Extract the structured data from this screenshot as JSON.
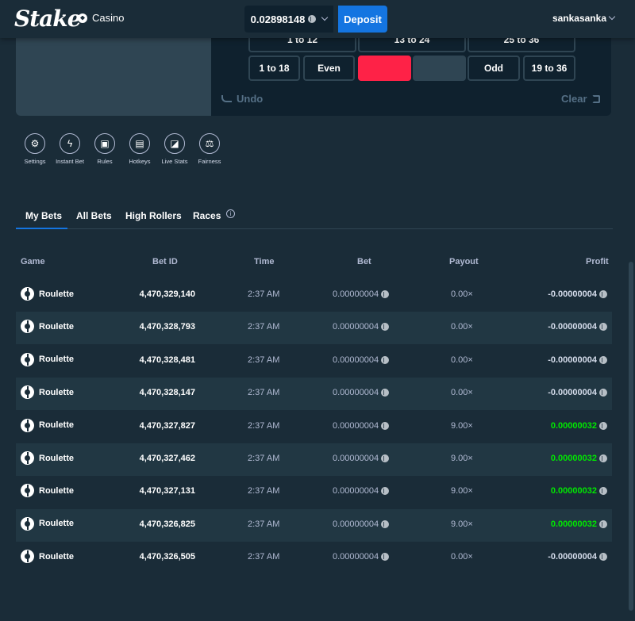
{
  "header": {
    "logo": "Stake",
    "casino_label": "Casino",
    "balance": "0.02898148",
    "deposit_label": "Deposit",
    "username": "sankasanka"
  },
  "bet_board": {
    "row1": [
      "1 to 12",
      "13 to 24",
      "25 to 36"
    ],
    "row2": [
      "1 to 18",
      "Even",
      "",
      "",
      "Odd",
      "19 to 36"
    ],
    "undo_label": "Undo",
    "clear_label": "Clear",
    "colors": {
      "red": "#fe2247",
      "black": "#2f4553"
    }
  },
  "tools": [
    {
      "label": "Settings",
      "icon": "gear-icon"
    },
    {
      "label": "Instant Bet",
      "icon": "lightning-icon"
    },
    {
      "label": "Rules",
      "icon": "rules-icon"
    },
    {
      "label": "Hotkeys",
      "icon": "keyboard-icon"
    },
    {
      "label": "Live Stats",
      "icon": "chart-icon"
    },
    {
      "label": "Fairness",
      "icon": "scale-icon"
    }
  ],
  "tabs": [
    "My Bets",
    "All Bets",
    "High Rollers",
    "Races"
  ],
  "table": {
    "headers": {
      "game": "Game",
      "betid": "Bet ID",
      "time": "Time",
      "bet": "Bet",
      "payout": "Payout",
      "profit": "Profit"
    },
    "rows": [
      {
        "game": "Roulette",
        "betid": "4,470,329,140",
        "time": "2:37 AM",
        "bet": "0.00000004",
        "payout": "0.00×",
        "profit": "-0.00000004",
        "win": false
      },
      {
        "game": "Roulette",
        "betid": "4,470,328,793",
        "time": "2:37 AM",
        "bet": "0.00000004",
        "payout": "0.00×",
        "profit": "-0.00000004",
        "win": false
      },
      {
        "game": "Roulette",
        "betid": "4,470,328,481",
        "time": "2:37 AM",
        "bet": "0.00000004",
        "payout": "0.00×",
        "profit": "-0.00000004",
        "win": false
      },
      {
        "game": "Roulette",
        "betid": "4,470,328,147",
        "time": "2:37 AM",
        "bet": "0.00000004",
        "payout": "0.00×",
        "profit": "-0.00000004",
        "win": false
      },
      {
        "game": "Roulette",
        "betid": "4,470,327,827",
        "time": "2:37 AM",
        "bet": "0.00000004",
        "payout": "9.00×",
        "profit": "0.00000032",
        "win": true
      },
      {
        "game": "Roulette",
        "betid": "4,470,327,462",
        "time": "2:37 AM",
        "bet": "0.00000004",
        "payout": "9.00×",
        "profit": "0.00000032",
        "win": true
      },
      {
        "game": "Roulette",
        "betid": "4,470,327,131",
        "time": "2:37 AM",
        "bet": "0.00000004",
        "payout": "9.00×",
        "profit": "0.00000032",
        "win": true
      },
      {
        "game": "Roulette",
        "betid": "4,470,326,825",
        "time": "2:37 AM",
        "bet": "0.00000004",
        "payout": "9.00×",
        "profit": "0.00000032",
        "win": true
      },
      {
        "game": "Roulette",
        "betid": "4,470,326,505",
        "time": "2:37 AM",
        "bet": "0.00000004",
        "payout": "0.00×",
        "profit": "-0.00000004",
        "win": false
      }
    ]
  }
}
